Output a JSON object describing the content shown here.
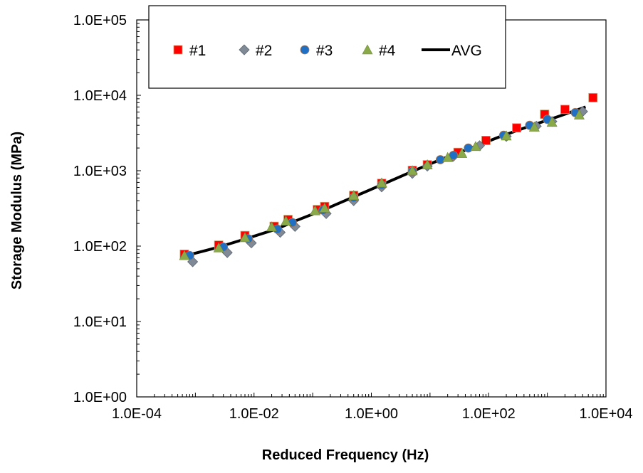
{
  "chart_data": {
    "type": "scatter",
    "title": "",
    "xlabel": "Reduced Frequency (Hz)",
    "ylabel": "Storage Modulus (MPa)",
    "xscale": "log",
    "yscale": "log",
    "xlim": [
      0.0001,
      10000
    ],
    "ylim": [
      1,
      100000
    ],
    "x_tick_labels": [
      "1.0E-04",
      "1.0E-02",
      "1.0E+00",
      "1.0E+02",
      "1.0E+04"
    ],
    "y_tick_labels": [
      "1.0E+00",
      "1.0E+01",
      "1.0E+02",
      "1.0E+03",
      "1.0E+04",
      "1.0E+05"
    ],
    "grid": false,
    "legend_position": "top-left (inside plot, boxed)",
    "series": [
      {
        "name": "#1",
        "marker": "square",
        "color": "#ff0000",
        "points": [
          [
            0.00065,
            78
          ],
          [
            0.0025,
            103
          ],
          [
            0.007,
            138
          ],
          [
            0.022,
            183
          ],
          [
            0.038,
            225
          ],
          [
            0.12,
            305
          ],
          [
            0.16,
            335
          ],
          [
            0.5,
            470
          ],
          [
            1.5,
            680
          ],
          [
            5,
            1010
          ],
          [
            9,
            1200
          ],
          [
            30,
            1750
          ],
          [
            90,
            2520
          ],
          [
            300,
            3700
          ],
          [
            900,
            5600
          ],
          [
            2000,
            6500
          ],
          [
            6000,
            9300
          ]
        ]
      },
      {
        "name": "#2",
        "marker": "diamond",
        "color": "#7f8a96",
        "points": [
          [
            0.0009,
            62
          ],
          [
            0.0035,
            82
          ],
          [
            0.009,
            110
          ],
          [
            0.028,
            152
          ],
          [
            0.05,
            182
          ],
          [
            0.17,
            270
          ],
          [
            0.5,
            400
          ],
          [
            1.5,
            610
          ],
          [
            5,
            920
          ],
          [
            9,
            1150
          ],
          [
            25,
            1550
          ],
          [
            70,
            2150
          ],
          [
            200,
            2850
          ],
          [
            650,
            3900
          ],
          [
            1200,
            4500
          ],
          [
            4000,
            6100
          ]
        ]
      },
      {
        "name": "#3",
        "marker": "circle",
        "color": "#1f6fc5",
        "points": [
          [
            0.0008,
            75
          ],
          [
            0.003,
            97
          ],
          [
            0.008,
            125
          ],
          [
            0.025,
            168
          ],
          [
            0.045,
            205
          ],
          [
            0.15,
            300
          ],
          [
            0.5,
            440
          ],
          [
            1.5,
            650
          ],
          [
            5,
            980
          ],
          [
            15,
            1400
          ],
          [
            25,
            1600
          ],
          [
            45,
            2000
          ],
          [
            180,
            2950
          ],
          [
            500,
            4000
          ],
          [
            1000,
            4800
          ],
          [
            3000,
            5900
          ]
        ]
      },
      {
        "name": "#4",
        "marker": "triangle",
        "color": "#8aaa4a",
        "points": [
          [
            0.00065,
            75
          ],
          [
            0.0025,
            95
          ],
          [
            0.007,
            130
          ],
          [
            0.02,
            180
          ],
          [
            0.035,
            215
          ],
          [
            0.11,
            295
          ],
          [
            0.16,
            320
          ],
          [
            0.5,
            470
          ],
          [
            1.5,
            690
          ],
          [
            5,
            1000
          ],
          [
            9,
            1200
          ],
          [
            20,
            1500
          ],
          [
            35,
            1700
          ],
          [
            60,
            2100
          ],
          [
            200,
            2900
          ],
          [
            600,
            3800
          ],
          [
            1200,
            4400
          ],
          [
            3500,
            5500
          ]
        ]
      },
      {
        "name": "AVG",
        "marker": "line",
        "color": "#000000",
        "points": [
          [
            0.00065,
            74
          ],
          [
            0.0025,
            97
          ],
          [
            0.008,
            128
          ],
          [
            0.025,
            170
          ],
          [
            0.05,
            215
          ],
          [
            0.15,
            300
          ],
          [
            0.5,
            450
          ],
          [
            1.5,
            650
          ],
          [
            5,
            980
          ],
          [
            15,
            1400
          ],
          [
            50,
            2000
          ],
          [
            150,
            2800
          ],
          [
            500,
            3900
          ],
          [
            1500,
            5200
          ],
          [
            4500,
            7000
          ]
        ]
      }
    ]
  }
}
